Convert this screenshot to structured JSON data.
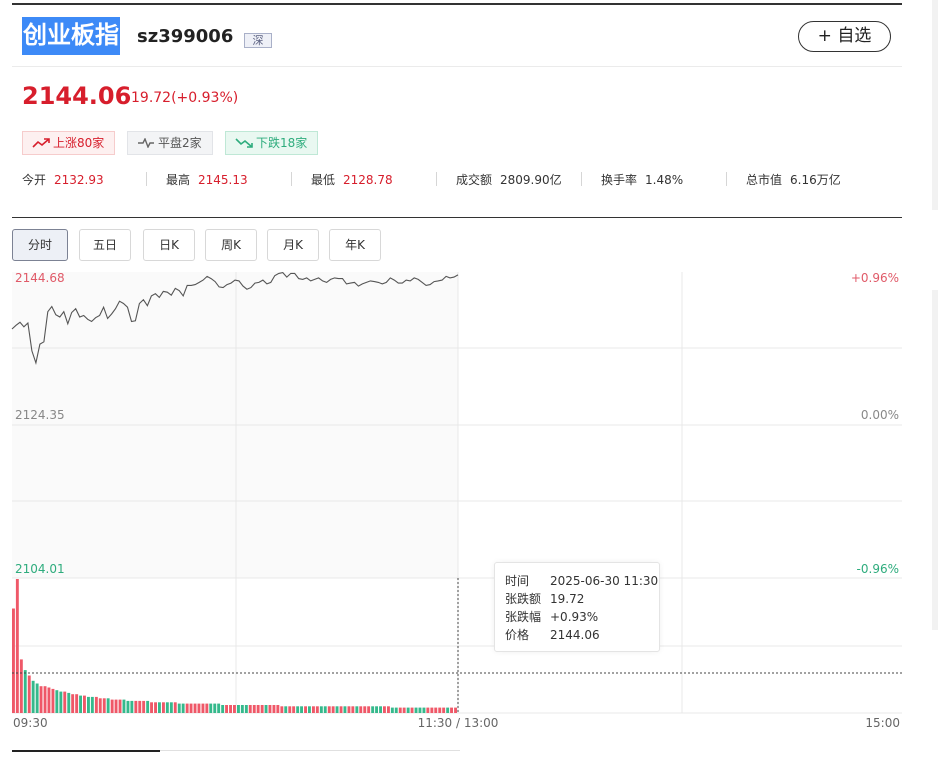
{
  "header": {
    "title": "创业板指",
    "code": "sz399006",
    "market": "深",
    "follow_label": "+ 自选"
  },
  "quote": {
    "price": "2144.06",
    "change": "19.72(+0.93%)",
    "up_color": "#d71e2c",
    "down_color": "#2eac7d"
  },
  "breadth": [
    {
      "icon": "trend-up-icon",
      "label": "上涨80家"
    },
    {
      "icon": "trend-flat-icon",
      "label": "平盘2家"
    },
    {
      "icon": "trend-down-icon",
      "label": "下跌18家"
    }
  ],
  "stats": [
    {
      "label": "今开",
      "value": "2132.93"
    },
    {
      "label": "最高",
      "value": "2145.13"
    },
    {
      "label": "最低",
      "value": "2128.78"
    },
    {
      "label": "成交额",
      "value": "2809.90亿"
    },
    {
      "label": "换手率",
      "value": "1.48%"
    },
    {
      "label": "总市值",
      "value": "6.16万亿"
    }
  ],
  "period_tabs": [
    "分时",
    "五日",
    "日K",
    "周K",
    "月K",
    "年K"
  ],
  "active_tab": "分时",
  "chart_data": {
    "type": "line",
    "y_left_labels": [
      "2144.68",
      "2124.35",
      "2104.01"
    ],
    "y_right_labels": [
      "+0.96%",
      "0.00%",
      "-0.96%"
    ],
    "x_labels": [
      "09:30",
      "11:30 / 13:00",
      "15:00"
    ],
    "ylim": [
      2104.01,
      2144.68
    ],
    "base": 2124.35,
    "series": [
      {
        "values": [
          2137.1,
          2137.6,
          2138.0,
          2137.4,
          2137.9,
          2134.2,
          2132.6,
          2135.1,
          2135.4,
          2139.4,
          2140.1,
          2139.0,
          2138.7,
          2139.4,
          2137.8,
          2139.3,
          2139.8,
          2138.7,
          2138.9,
          2138.4,
          2138.1,
          2138.6,
          2138.9,
          2140.0,
          2138.5,
          2139.1,
          2139.8,
          2140.8,
          2140.5,
          2140.0,
          2138.1,
          2138.2,
          2140.5,
          2141.0,
          2140.2,
          2141.5,
          2141.8,
          2141.3,
          2142.1,
          2142.0,
          2141.6,
          2142.5,
          2142.2,
          2141.5,
          2142.9,
          2142.9,
          2143.0,
          2143.3,
          2143.6,
          2144.1,
          2143.8,
          2143.4,
          2142.7,
          2142.6,
          2143.0,
          2143.2,
          2143.6,
          2143.5,
          2142.8,
          2142.4,
          2142.6,
          2143.2,
          2143.3,
          2143.6,
          2143.1,
          2143.3,
          2144.2,
          2144.5,
          2144.6,
          2144.0,
          2144.5,
          2144.5,
          2143.8,
          2143.7,
          2143.9,
          2143.5,
          2143.7,
          2143.9,
          2143.5,
          2143.3,
          2143.7,
          2143.9,
          2143.8,
          2143.8,
          2143.1,
          2143.2,
          2143.3,
          2142.8,
          2143.1,
          2143.3,
          2143.5,
          2143.4,
          2143.3,
          2143.1,
          2143.3,
          2143.9,
          2143.6,
          2143.2,
          2143.2,
          2143.6,
          2143.5,
          2143.9,
          2143.7,
          2143.3,
          2142.9,
          2143.0,
          2143.4,
          2143.5,
          2143.6,
          2144.1,
          2143.9,
          2144.0,
          2144.3
        ]
      }
    ],
    "volume": [
      78,
      100,
      40,
      32,
      28,
      24,
      22,
      20,
      20,
      19,
      18,
      17,
      16,
      16,
      15,
      14,
      14,
      13,
      13,
      12,
      12,
      12,
      11,
      11,
      11,
      10,
      10,
      10,
      10,
      9,
      9,
      9,
      9,
      9,
      9,
      8,
      8,
      8,
      8,
      8,
      8,
      8,
      7,
      7,
      7,
      7,
      7,
      7,
      7,
      7,
      7,
      7,
      7,
      6,
      6,
      6,
      6,
      6,
      6,
      6,
      6,
      6,
      6,
      6,
      6,
      6,
      6,
      6,
      5,
      5,
      5,
      5,
      5,
      5,
      5,
      5,
      5,
      5,
      5,
      5,
      5,
      5,
      5,
      5,
      5,
      5,
      5,
      5,
      5,
      5,
      5,
      5,
      5,
      5,
      5,
      5,
      4,
      4,
      4,
      4,
      4,
      4,
      4,
      4,
      4,
      4,
      4,
      4,
      4,
      4,
      4,
      4,
      4
    ]
  },
  "tooltip": {
    "rows": [
      {
        "k": "时间",
        "v": "2025-06-30 11:30"
      },
      {
        "k": "张跌额",
        "v": "19.72"
      },
      {
        "k": "张跌幅",
        "v": "+0.93%"
      },
      {
        "k": "价格",
        "v": "2144.06"
      }
    ]
  }
}
